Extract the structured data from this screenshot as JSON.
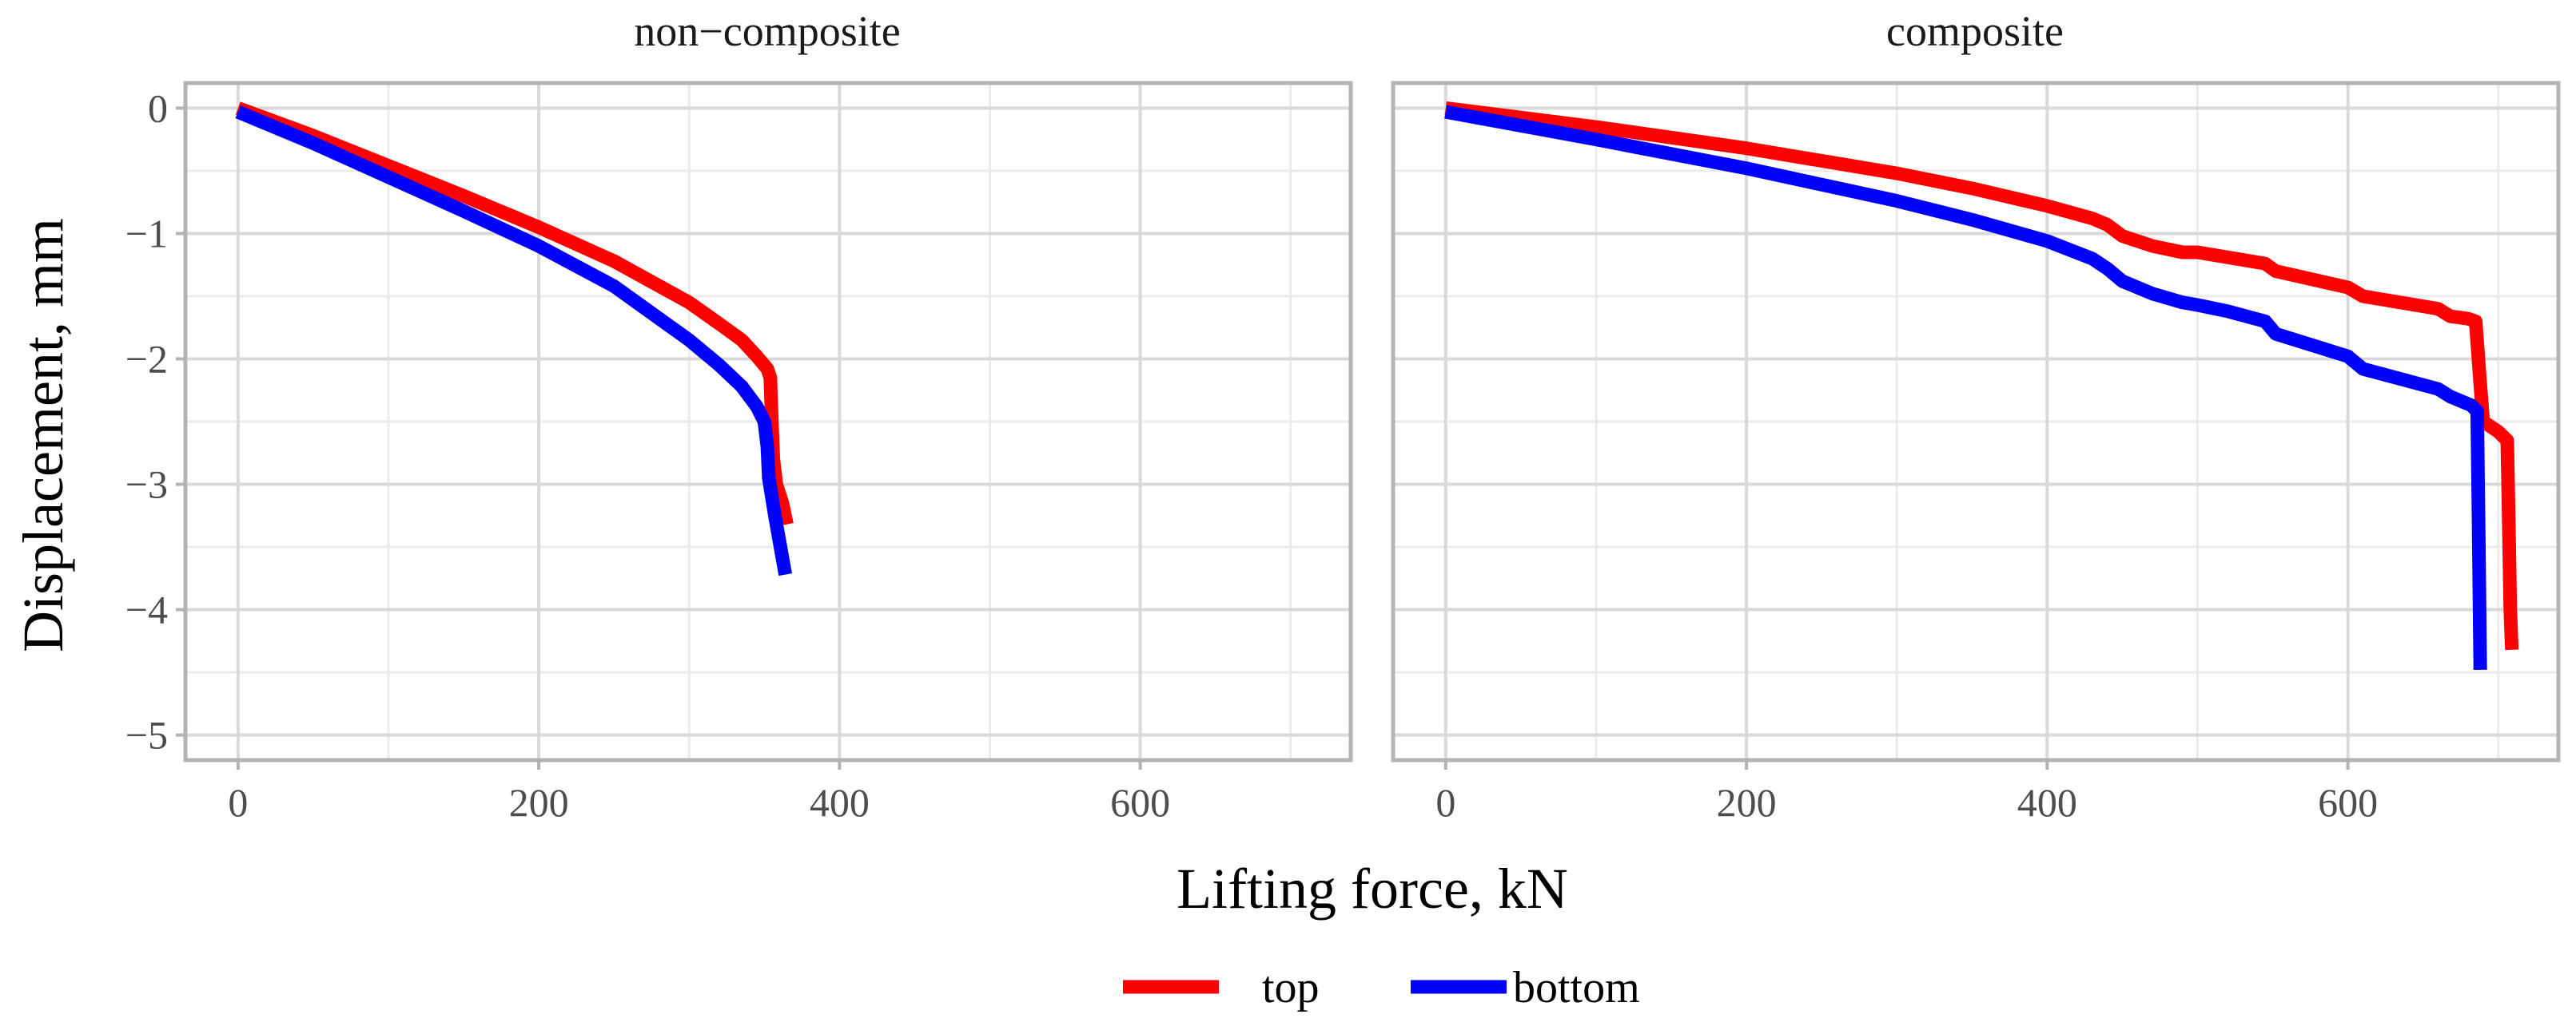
{
  "chart_data": {
    "type": "line",
    "xlabel": "Lifting force, kN",
    "ylabel": "Displacement, mm",
    "xlim": [
      -35,
      740
    ],
    "ylim": [
      -5.2,
      0.2
    ],
    "x_ticks": [
      0,
      200,
      400,
      600
    ],
    "y_ticks": [
      0,
      -1,
      -2,
      -3,
      -4,
      -5
    ],
    "y_tick_labels": [
      "0",
      "−1",
      "−2",
      "−3",
      "−4",
      "−5"
    ],
    "grid": true,
    "legend": {
      "position": "bottom",
      "entries": [
        {
          "name": "top",
          "color": "#ff0000"
        },
        {
          "name": "bottom",
          "color": "#0000ff"
        }
      ]
    },
    "panels": [
      {
        "title": "non−composite",
        "series": [
          {
            "name": "top",
            "color": "#ff0000",
            "x": [
              0,
              50,
              100,
              150,
              200,
              250,
              300,
              320,
              335,
              345,
              352,
              354,
              355,
              356,
              358,
              362,
              365
            ],
            "y": [
              0,
              -0.22,
              -0.46,
              -0.7,
              -0.95,
              -1.22,
              -1.55,
              -1.72,
              -1.85,
              -1.98,
              -2.08,
              -2.15,
              -2.5,
              -2.8,
              -3.0,
              -3.15,
              -3.32
            ]
          },
          {
            "name": "bottom",
            "color": "#0000ff",
            "x": [
              0,
              50,
              100,
              150,
              200,
              250,
              300,
              320,
              335,
              345,
              350,
              352,
              353,
              355,
              357,
              360,
              364
            ],
            "y": [
              -0.03,
              -0.28,
              -0.55,
              -0.82,
              -1.1,
              -1.42,
              -1.85,
              -2.05,
              -2.22,
              -2.38,
              -2.5,
              -2.7,
              -2.95,
              -3.1,
              -3.25,
              -3.45,
              -3.72
            ]
          }
        ]
      },
      {
        "title": "composite",
        "series": [
          {
            "name": "top",
            "color": "#ff0000",
            "x": [
              0,
              100,
              200,
              300,
              350,
              400,
              430,
              440,
              450,
              470,
              490,
              500,
              520,
              545,
              552,
              600,
              610,
              660,
              668,
              680,
              685,
              688,
              690,
              700,
              706,
              707,
              708,
              709
            ],
            "y": [
              0,
              -0.15,
              -0.32,
              -0.52,
              -0.64,
              -0.78,
              -0.88,
              -0.93,
              -1.02,
              -1.1,
              -1.15,
              -1.15,
              -1.19,
              -1.24,
              -1.3,
              -1.43,
              -1.5,
              -1.6,
              -1.66,
              -1.68,
              -1.7,
              -2.2,
              -2.5,
              -2.58,
              -2.65,
              -3.3,
              -4.0,
              -4.32
            ]
          },
          {
            "name": "bottom",
            "color": "#0000ff",
            "x": [
              0,
              100,
              200,
              300,
              350,
              400,
              430,
              440,
              450,
              470,
              490,
              500,
              520,
              545,
              552,
              600,
              610,
              660,
              668,
              682,
              686,
              687,
              688
            ],
            "y": [
              -0.03,
              -0.25,
              -0.48,
              -0.74,
              -0.89,
              -1.06,
              -1.2,
              -1.28,
              -1.38,
              -1.48,
              -1.55,
              -1.57,
              -1.62,
              -1.7,
              -1.8,
              -1.98,
              -2.08,
              -2.24,
              -2.3,
              -2.37,
              -2.42,
              -3.4,
              -4.48
            ]
          }
        ]
      }
    ]
  }
}
